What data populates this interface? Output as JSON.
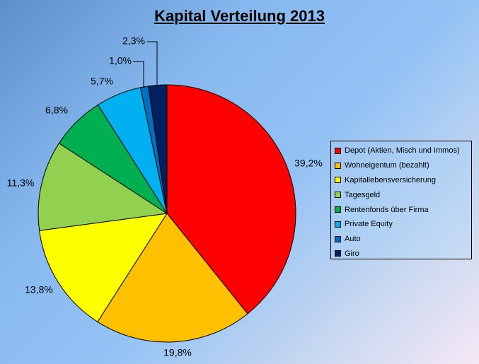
{
  "chart_data": {
    "type": "pie",
    "title": "Kapital Verteilung 2013",
    "slices": [
      {
        "label": "Depot (Aktien, Misch und Immos)",
        "value": 39.2,
        "value_label": "39,2%",
        "color": "#ff0000"
      },
      {
        "label": "Wohneigentum (bezahlt)",
        "value": 19.8,
        "value_label": "19,8%",
        "color": "#ffc000"
      },
      {
        "label": "Kapitallebensversicherung",
        "value": 13.8,
        "value_label": "13,8%",
        "color": "#ffff00"
      },
      {
        "label": "Tagesgeld",
        "value": 11.3,
        "value_label": "11,3%",
        "color": "#92d050"
      },
      {
        "label": "Rentenfonds über Firma",
        "value": 6.8,
        "value_label": "6,8%",
        "color": "#00b050"
      },
      {
        "label": "Private Equity",
        "value": 5.7,
        "value_label": "5,7%",
        "color": "#00b0f0"
      },
      {
        "label": "Auto",
        "value": 1.0,
        "value_label": "1,0%",
        "color": "#0070c0"
      },
      {
        "label": "Giro",
        "value": 2.3,
        "value_label": "2,3%",
        "color": "#002060"
      }
    ],
    "legend_position": "right"
  }
}
